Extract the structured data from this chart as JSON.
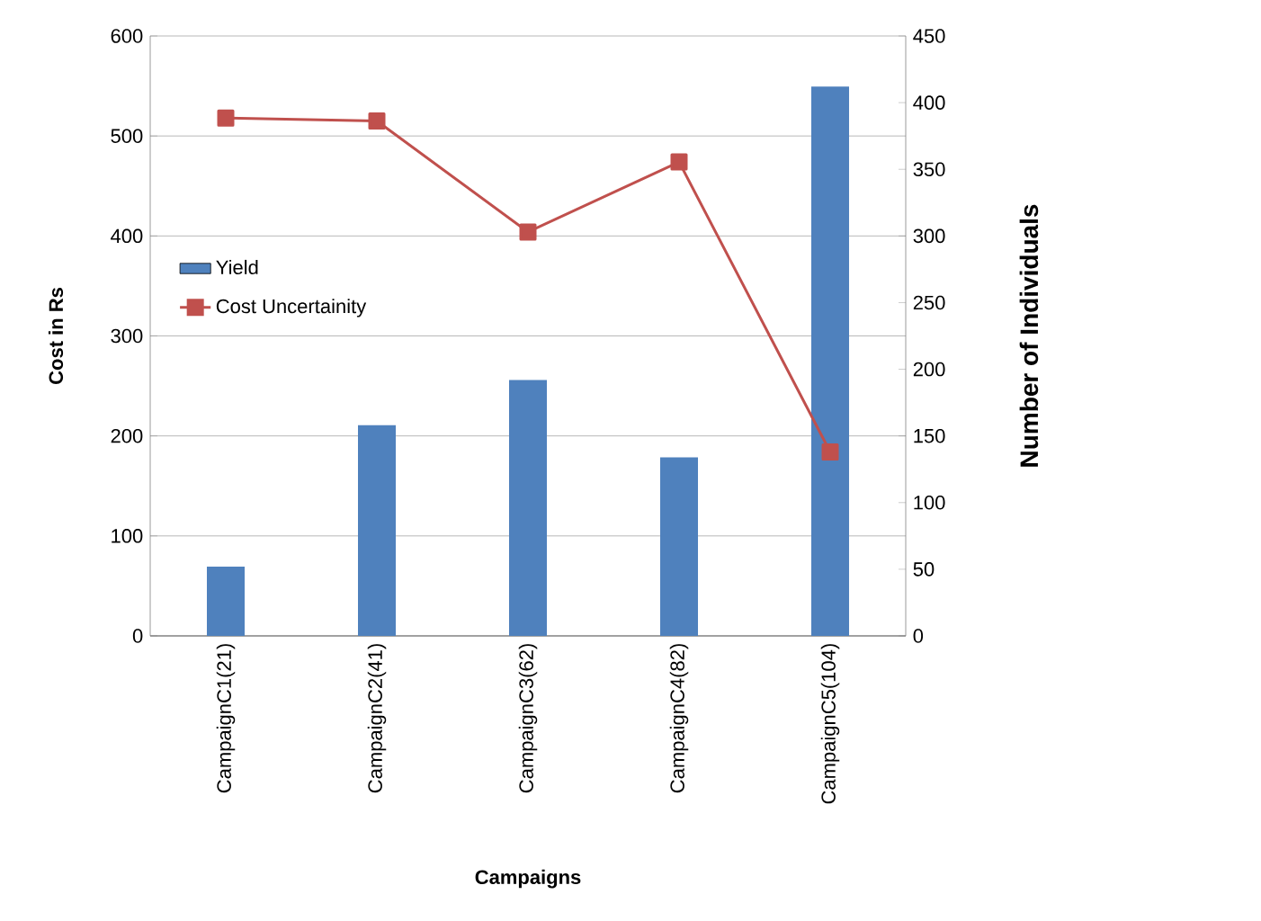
{
  "chart_data": {
    "type": "bar",
    "categories": [
      "CampaignC1(21)",
      "CampaignC2(41)",
      "CampaignC3(62)",
      "CampaignC4(82)",
      "CampaignC5(104)"
    ],
    "series": [
      {
        "name": "Yield",
        "axis": "y2",
        "color": "#4f81bd",
        "values": [
          52,
          158,
          192,
          134,
          412
        ]
      },
      {
        "name": "Cost Uncertainity",
        "type": "line",
        "color": "#c0504d",
        "values": [
          518,
          515,
          404,
          474,
          184
        ]
      }
    ],
    "xlabel": "Campaigns",
    "ylabel": "Cost in Rs",
    "y2label": "Number of Individuals",
    "ylim": [
      0,
      600
    ],
    "yticks": [
      0,
      100,
      200,
      300,
      400,
      500,
      600
    ],
    "y2lim": [
      0,
      450
    ],
    "y2ticks": [
      0,
      50,
      100,
      150,
      200,
      250,
      300,
      350,
      400,
      450
    ],
    "grid": "y",
    "legend": "left",
    "marker": "square"
  }
}
